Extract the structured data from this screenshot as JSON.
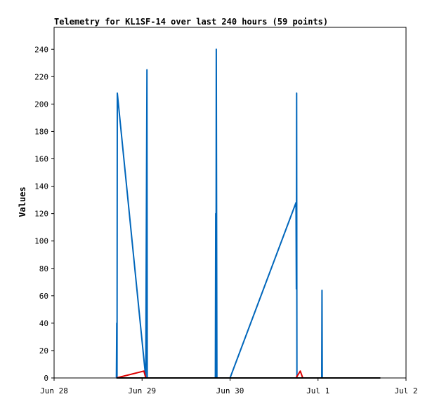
{
  "chart_data": {
    "type": "line",
    "title": "Telemetry for KL1SF-14 over last 240 hours (59 points)",
    "xlabel": "",
    "ylabel": "Values",
    "x_ticks": [
      "Jun 28",
      "Jun 29",
      "Jun 30",
      "Jul 1",
      "Jul 2"
    ],
    "x_range": [
      "2023-06-28T00:00",
      "2023-07-02T00:00"
    ],
    "y_ticks": [
      0,
      20,
      40,
      60,
      80,
      100,
      120,
      140,
      160,
      180,
      200,
      220,
      240
    ],
    "ylim": [
      0,
      256
    ],
    "grid": false,
    "legend": "none",
    "series": [
      {
        "color": "#0066bb",
        "points": [
          {
            "x": "2023-06-28T17:00",
            "y": 0
          },
          {
            "x": "2023-06-28T17:05",
            "y": 40
          },
          {
            "x": "2023-06-28T17:10",
            "y": 0
          },
          {
            "x": "2023-06-28T17:15",
            "y": 208
          },
          {
            "x": "2023-06-29T01:00",
            "y": 0
          },
          {
            "x": "2023-06-29T01:20",
            "y": 225
          },
          {
            "x": "2023-06-29T01:25",
            "y": 0
          },
          {
            "x": "2023-06-29T20:00",
            "y": 0
          },
          {
            "x": "2023-06-29T20:05",
            "y": 120
          },
          {
            "x": "2023-06-29T20:10",
            "y": 0
          },
          {
            "x": "2023-06-29T20:15",
            "y": 240
          },
          {
            "x": "2023-06-29T20:25",
            "y": 0
          },
          {
            "x": "2023-06-30T00:00",
            "y": 0
          },
          {
            "x": "2023-06-30T18:00",
            "y": 128
          },
          {
            "x": "2023-06-30T18:05",
            "y": 65
          },
          {
            "x": "2023-06-30T18:10",
            "y": 208
          },
          {
            "x": "2023-06-30T18:15",
            "y": 0
          },
          {
            "x": "2023-07-01T01:00",
            "y": 0
          },
          {
            "x": "2023-07-01T01:05",
            "y": 64
          },
          {
            "x": "2023-07-01T01:10",
            "y": 0
          },
          {
            "x": "2023-07-01T17:00",
            "y": 0
          }
        ]
      },
      {
        "color": "#dd0000",
        "points": [
          {
            "x": "2023-06-28T17:00",
            "y": 0
          },
          {
            "x": "2023-06-29T00:30",
            "y": 5
          },
          {
            "x": "2023-06-29T01:00",
            "y": 0
          },
          {
            "x": "2023-06-30T18:00",
            "y": 0
          },
          {
            "x": "2023-06-30T19:10",
            "y": 5
          },
          {
            "x": "2023-06-30T19:50",
            "y": 0
          }
        ]
      },
      {
        "color": "#000000",
        "points": [
          {
            "x": "2023-06-28T17:00",
            "y": 0
          },
          {
            "x": "2023-07-01T17:00",
            "y": 0
          }
        ]
      }
    ]
  }
}
